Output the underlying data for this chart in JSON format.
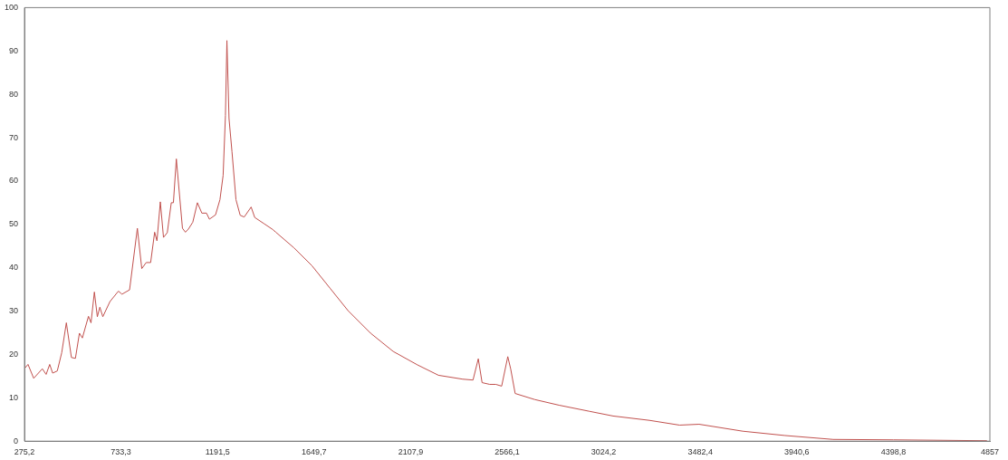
{
  "chart_data": {
    "type": "line",
    "xlim": [
      275.2,
      4857
    ],
    "ylim": [
      0,
      100
    ],
    "xticks": [
      {
        "value": 275.2,
        "label": "275,2"
      },
      {
        "value": 733.3,
        "label": "733,3"
      },
      {
        "value": 1191.5,
        "label": "1191,5"
      },
      {
        "value": 1649.7,
        "label": "1649,7"
      },
      {
        "value": 2107.9,
        "label": "2107,9"
      },
      {
        "value": 2566.1,
        "label": "2566,1"
      },
      {
        "value": 3024.2,
        "label": "3024,2"
      },
      {
        "value": 3482.4,
        "label": "3482,4"
      },
      {
        "value": 3940.6,
        "label": "3940,6"
      },
      {
        "value": 4398.8,
        "label": "4398,8"
      },
      4857
    ],
    "yticks": [
      0,
      10,
      20,
      30,
      40,
      50,
      60,
      70,
      80,
      90,
      100
    ],
    "grid": false,
    "legend": false,
    "series": [
      {
        "color": "#c0504d",
        "x": [
          278,
          292,
          319,
          360,
          378,
          395,
          409,
          431,
          452,
          474,
          498,
          517,
          536,
          550,
          579,
          591,
          607,
          621,
          633,
          647,
          681,
          721,
          738,
          774,
          811,
          832,
          853,
          874,
          893,
          904,
          920,
          935,
          953,
          972,
          982,
          996,
          1025,
          1039,
          1053,
          1074,
          1096,
          1117,
          1139,
          1153,
          1182,
          1203,
          1218,
          1229,
          1236,
          1246,
          1260,
          1279,
          1299,
          1318,
          1351,
          1368,
          1411,
          1454,
          1468,
          1554,
          1639,
          1725,
          1811,
          1918,
          2025,
          2140,
          2240,
          2355,
          2404,
          2429,
          2447,
          2483,
          2512,
          2540,
          2569,
          2583,
          2604,
          2697,
          2812,
          2955,
          3069,
          3241,
          3384,
          3477,
          3684,
          3885,
          4113,
          4399,
          4843
        ],
        "values": [
          16.9,
          17.7,
          14.5,
          16.7,
          15.4,
          17.7,
          15.7,
          16.2,
          20.4,
          27.3,
          19.3,
          19.1,
          24.9,
          23.8,
          28.8,
          27.3,
          34.4,
          28.7,
          30.9,
          28.7,
          32.2,
          34.6,
          33.9,
          34.9,
          49.1,
          39.8,
          41.2,
          41.2,
          48.2,
          46.2,
          55.2,
          47.0,
          48.1,
          55.0,
          55.0,
          65.1,
          49.1,
          48.2,
          48.9,
          50.5,
          55.0,
          52.6,
          52.6,
          51.2,
          52.2,
          55.7,
          61.3,
          75.1,
          92.4,
          74.4,
          66.8,
          55.7,
          52.1,
          51.7,
          54.0,
          51.6,
          50.2,
          48.8,
          48.2,
          44.6,
          40.5,
          35.3,
          30.1,
          24.9,
          20.7,
          17.6,
          15.2,
          14.3,
          14.1,
          19.0,
          13.5,
          13.1,
          13.1,
          12.7,
          19.5,
          16.6,
          11.0,
          9.6,
          8.3,
          6.9,
          5.8,
          4.8,
          3.7,
          3.9,
          2.3,
          1.3,
          0.4,
          0.3,
          0.1
        ]
      }
    ]
  }
}
